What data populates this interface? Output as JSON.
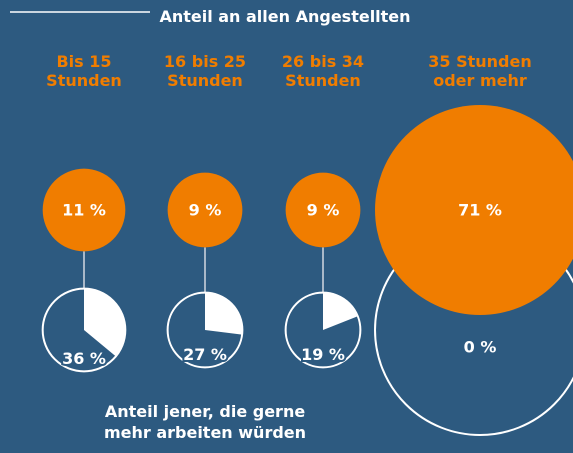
{
  "chart_data": {
    "type": "bubble",
    "title": "Anteil an allen Angestellten",
    "subtitle": "Anteil jener, die gerne mehr arbeiten würden",
    "categories": [
      "Bis 15 Stunden",
      "16 bis 25 Stunden",
      "26 bis 34 Stunden",
      "35 Stunden oder mehr"
    ],
    "series": [
      {
        "name": "Anteil an allen Angestellten",
        "color": "#f07d00",
        "values": [
          11,
          9,
          9,
          71
        ],
        "value_labels": [
          "11 %",
          "9 %",
          "9 %",
          "71 %"
        ]
      },
      {
        "name": "Anteil jener, die gerne mehr arbeiten würden",
        "color": "#ffffff",
        "values": [
          36,
          27,
          19,
          0
        ],
        "value_labels": [
          "36 %",
          "27 %",
          "19 %",
          "0 %"
        ]
      }
    ]
  }
}
